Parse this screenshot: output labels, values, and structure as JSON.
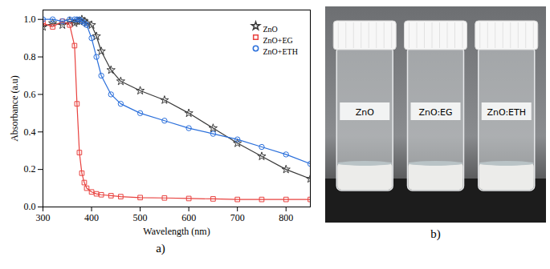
{
  "chart_data": {
    "type": "line",
    "caption": "a)",
    "x_label": "Wavelength (nm)",
    "y_label": "Absorbance (a.u)",
    "x": [
      300,
      320,
      340,
      355,
      365,
      370,
      375,
      380,
      385,
      390,
      400,
      410,
      420,
      440,
      460,
      500,
      550,
      600,
      650,
      700,
      750,
      800,
      850
    ],
    "series": [
      {
        "name": "ZnO",
        "color": "#3a3a3a",
        "marker": "star",
        "values": [
          0.96,
          0.98,
          0.97,
          0.99,
          0.98,
          0.99,
          0.99,
          1.0,
          0.99,
          0.98,
          0.97,
          0.91,
          0.83,
          0.73,
          0.67,
          0.62,
          0.57,
          0.5,
          0.42,
          0.34,
          0.27,
          0.2,
          0.15
        ]
      },
      {
        "name": "ZnO+EG",
        "color": "#e8423f",
        "marker": "square",
        "values": [
          0.98,
          0.96,
          0.99,
          0.97,
          0.86,
          0.55,
          0.29,
          0.18,
          0.13,
          0.1,
          0.08,
          0.07,
          0.065,
          0.06,
          0.055,
          0.05,
          0.048,
          0.045,
          0.043,
          0.04,
          0.04,
          0.04,
          0.04
        ]
      },
      {
        "name": "ZnO+ETH",
        "color": "#2a6fdb",
        "marker": "circle",
        "values": [
          1.0,
          1.0,
          0.99,
          1.0,
          1.0,
          1.0,
          1.0,
          0.99,
          0.98,
          0.97,
          0.9,
          0.8,
          0.7,
          0.6,
          0.55,
          0.5,
          0.46,
          0.42,
          0.39,
          0.36,
          0.32,
          0.28,
          0.23
        ]
      }
    ],
    "xlim": [
      300,
      850
    ],
    "xticks": [
      300,
      400,
      500,
      600,
      700,
      800
    ],
    "ylim": [
      0,
      1.05
    ],
    "yticks": [
      {
        "value": 0,
        "label": "0.0"
      },
      0.2,
      0.4,
      0.6,
      0.8,
      {
        "value": 1,
        "label": "1.0"
      }
    ],
    "legend": "top-right",
    "grid": false
  },
  "image": {
    "caption": "b)",
    "labels": [
      "ZnO",
      "ZnO:EG",
      "ZnO:ETH"
    ]
  }
}
